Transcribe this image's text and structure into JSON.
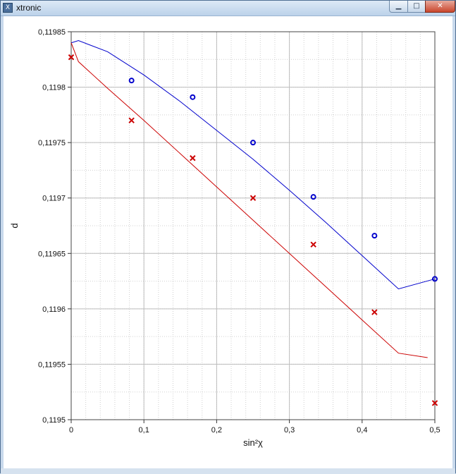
{
  "window": {
    "title": "xtronic",
    "icon": "xtronic-app-icon",
    "buttons": {
      "minimize": "minimize-icon",
      "maximize": "maximize-icon",
      "close": "close-icon"
    }
  },
  "chart_data": {
    "type": "scatter",
    "xlabel": "sin²χ",
    "ylabel": "d",
    "xlim": [
      0,
      0.5
    ],
    "ylim": [
      0.1195,
      0.11985
    ],
    "xticks": [
      0,
      0.1,
      0.2,
      0.3,
      0.4,
      0.5
    ],
    "xtick_labels": [
      "0",
      "0,1",
      "0,2",
      "0,3",
      "0,4",
      "0,5"
    ],
    "yticks": [
      0.1195,
      0.11955,
      0.1196,
      0.11965,
      0.1197,
      0.11975,
      0.1198,
      0.11985
    ],
    "ytick_labels": [
      "0,1195",
      "0,11955",
      "0,1196",
      "0,11965",
      "0,1197",
      "0,11975",
      "0,1198",
      "0,11985"
    ],
    "grid": true,
    "series": [
      {
        "color": "#0000cc",
        "marker": "circle",
        "x": [
          0.083,
          0.167,
          0.25,
          0.333,
          0.417,
          0.5
        ],
        "y": [
          0.119806,
          0.119791,
          0.11975,
          0.119701,
          0.119666,
          0.119627
        ],
        "fit_x": [
          0,
          0.01,
          0.05,
          0.1,
          0.15,
          0.2,
          0.25,
          0.3,
          0.35,
          0.4,
          0.45,
          0.5
        ],
        "fit_y": [
          0.11984,
          0.119842,
          0.119832,
          0.119811,
          0.119787,
          0.119761,
          0.119735,
          0.119707,
          0.119678,
          0.119648,
          0.119618,
          0.119627
        ]
      },
      {
        "color": "#cc0000",
        "marker": "x",
        "x": [
          0,
          0.083,
          0.167,
          0.25,
          0.333,
          0.417,
          0.5
        ],
        "y": [
          0.119827,
          0.11977,
          0.119736,
          0.1197,
          0.119658,
          0.119597,
          0.119515
        ],
        "fit_x": [
          0,
          0.01,
          0.05,
          0.1,
          0.15,
          0.2,
          0.25,
          0.3,
          0.35,
          0.4,
          0.45,
          0.49
        ],
        "fit_y": [
          0.11984,
          0.119823,
          0.119799,
          0.11977,
          0.11974,
          0.11971,
          0.11968,
          0.11965,
          0.11962,
          0.11959,
          0.11956,
          0.119556
        ]
      }
    ]
  }
}
